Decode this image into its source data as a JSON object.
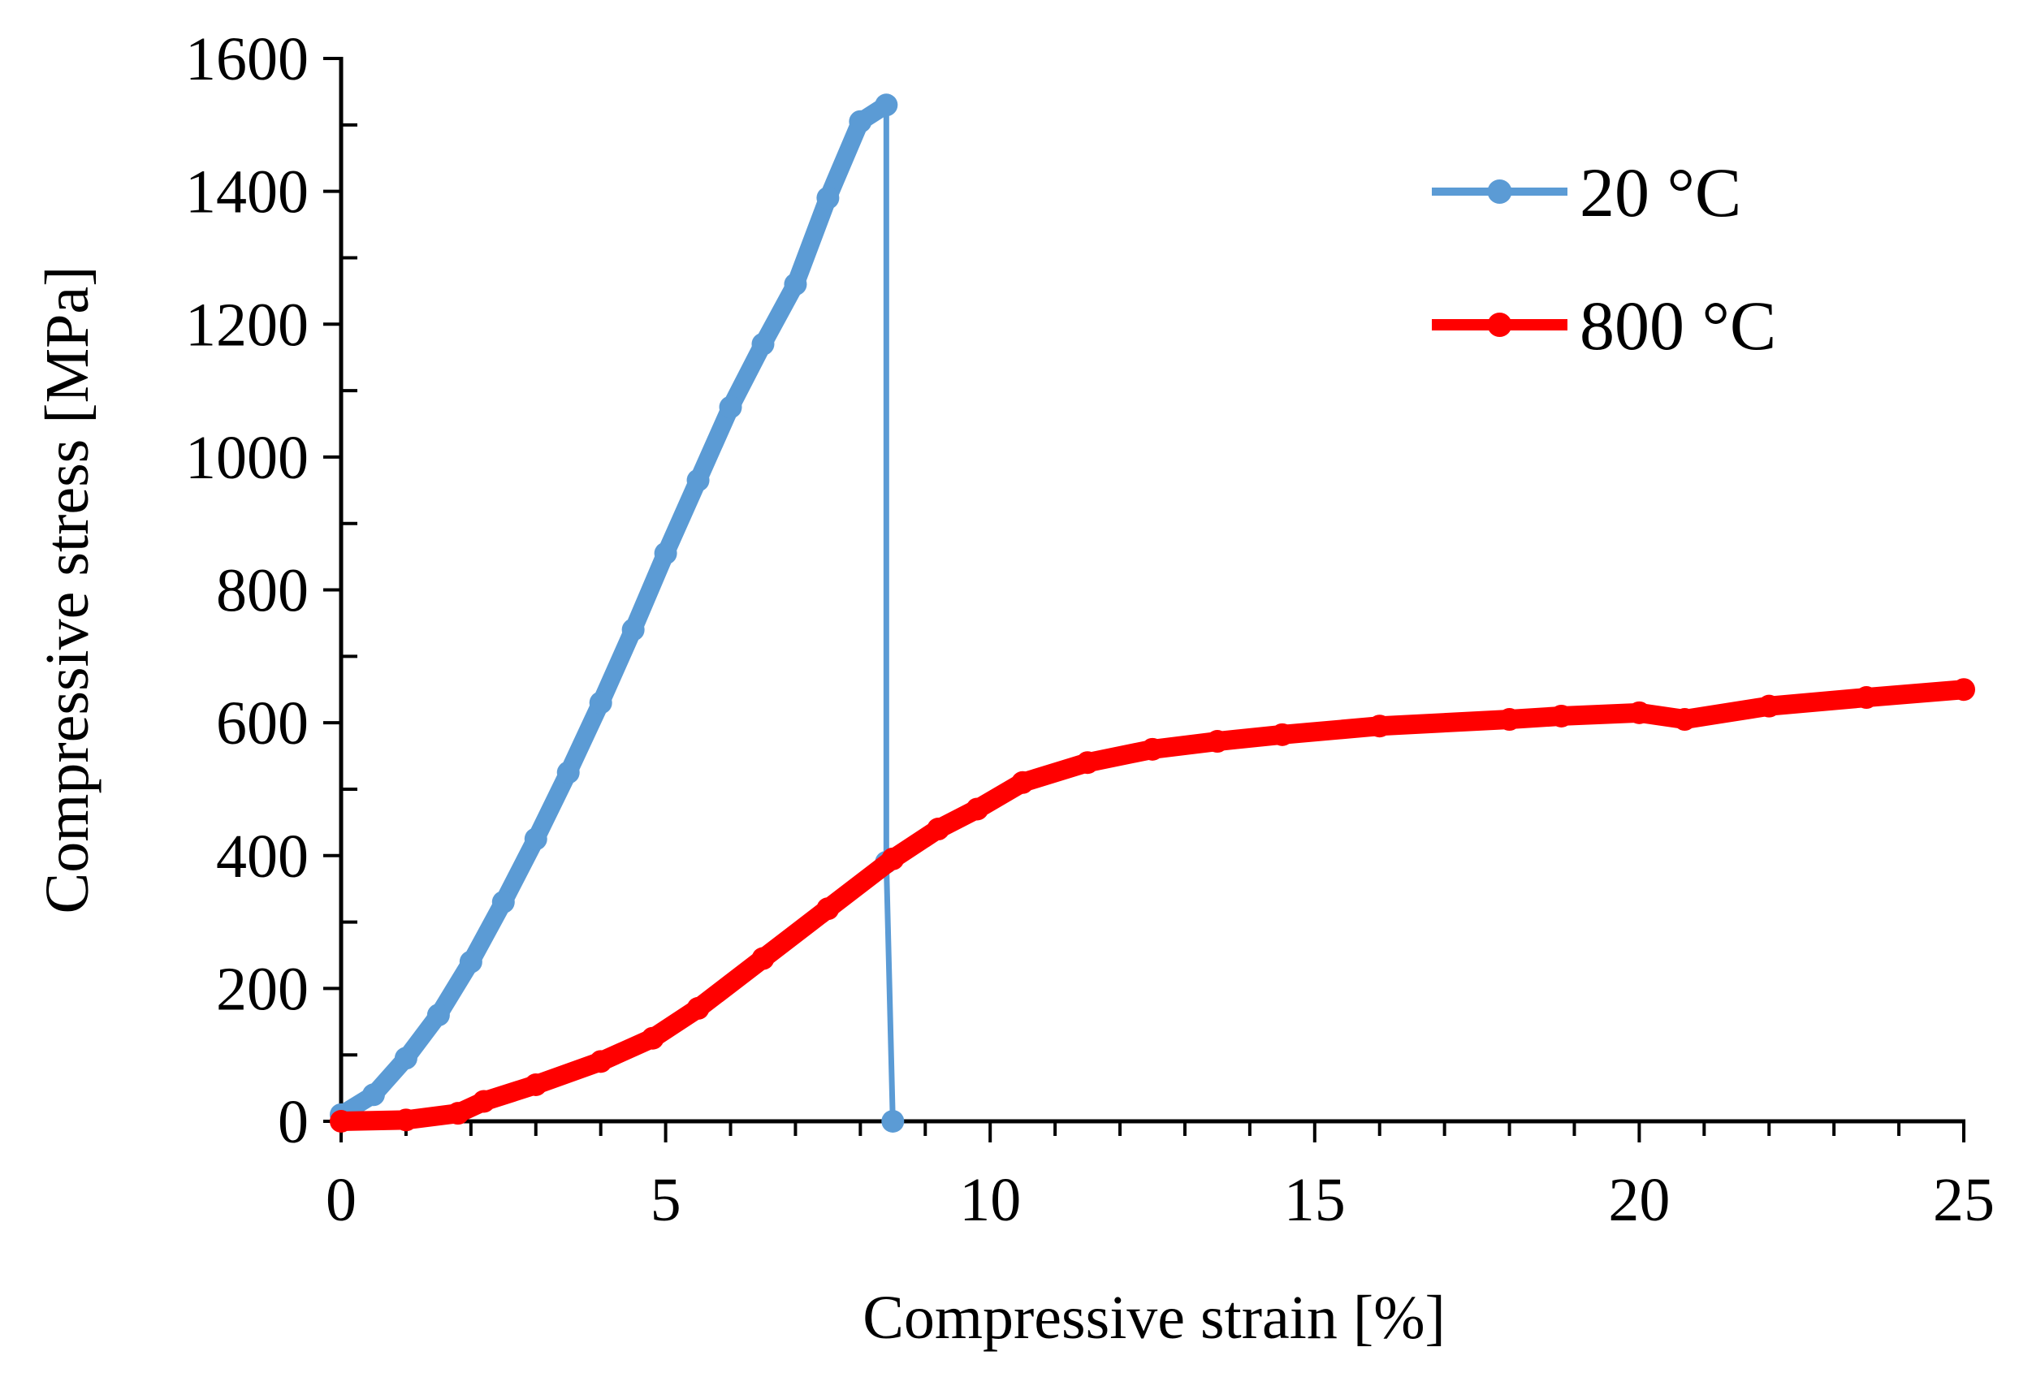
{
  "chart_data": {
    "type": "line",
    "title": "",
    "xlabel": "Compressive strain [%]",
    "ylabel": "Compressive stress [MPa]",
    "xlim": [
      0,
      25
    ],
    "ylim": [
      0,
      1600
    ],
    "x_ticks": [
      0,
      5,
      10,
      15,
      20,
      25
    ],
    "x_tick_labels": [
      "0",
      "5",
      "10",
      "15",
      "20",
      "25"
    ],
    "x_minor_step": 1,
    "y_ticks": [
      0,
      200,
      400,
      600,
      800,
      1000,
      1200,
      1400,
      1600
    ],
    "y_tick_labels": [
      "0",
      "200",
      "400",
      "600",
      "800",
      "1000",
      "1200",
      "1400",
      "1600"
    ],
    "y_minor_step": 100,
    "grid": false,
    "legend_position": "top-right",
    "series": [
      {
        "name": "20 °C",
        "color": "#5B9BD5",
        "x": [
          0,
          0.5,
          1.0,
          1.5,
          2.0,
          2.5,
          3.0,
          3.5,
          4.0,
          4.5,
          5.0,
          5.5,
          6.0,
          6.5,
          7.0,
          7.5,
          8.0,
          8.4,
          8.4,
          8.5
        ],
        "y": [
          10,
          40,
          95,
          160,
          240,
          330,
          425,
          525,
          630,
          740,
          855,
          965,
          1075,
          1170,
          1260,
          1390,
          1505,
          1530,
          390,
          0
        ]
      },
      {
        "name": "800 °C",
        "color": "#FF0000",
        "x": [
          0,
          1.0,
          1.8,
          2.2,
          3.0,
          4.0,
          4.8,
          5.5,
          6.5,
          7.5,
          8.5,
          9.2,
          9.8,
          10.5,
          11.5,
          12.5,
          13.5,
          14.5,
          16.0,
          18.0,
          18.8,
          20.0,
          20.7,
          22.0,
          23.5,
          25.0
        ],
        "y": [
          0,
          2,
          12,
          30,
          55,
          90,
          125,
          170,
          245,
          320,
          395,
          440,
          470,
          510,
          540,
          560,
          572,
          582,
          595,
          605,
          610,
          615,
          605,
          625,
          638,
          650
        ]
      }
    ]
  }
}
